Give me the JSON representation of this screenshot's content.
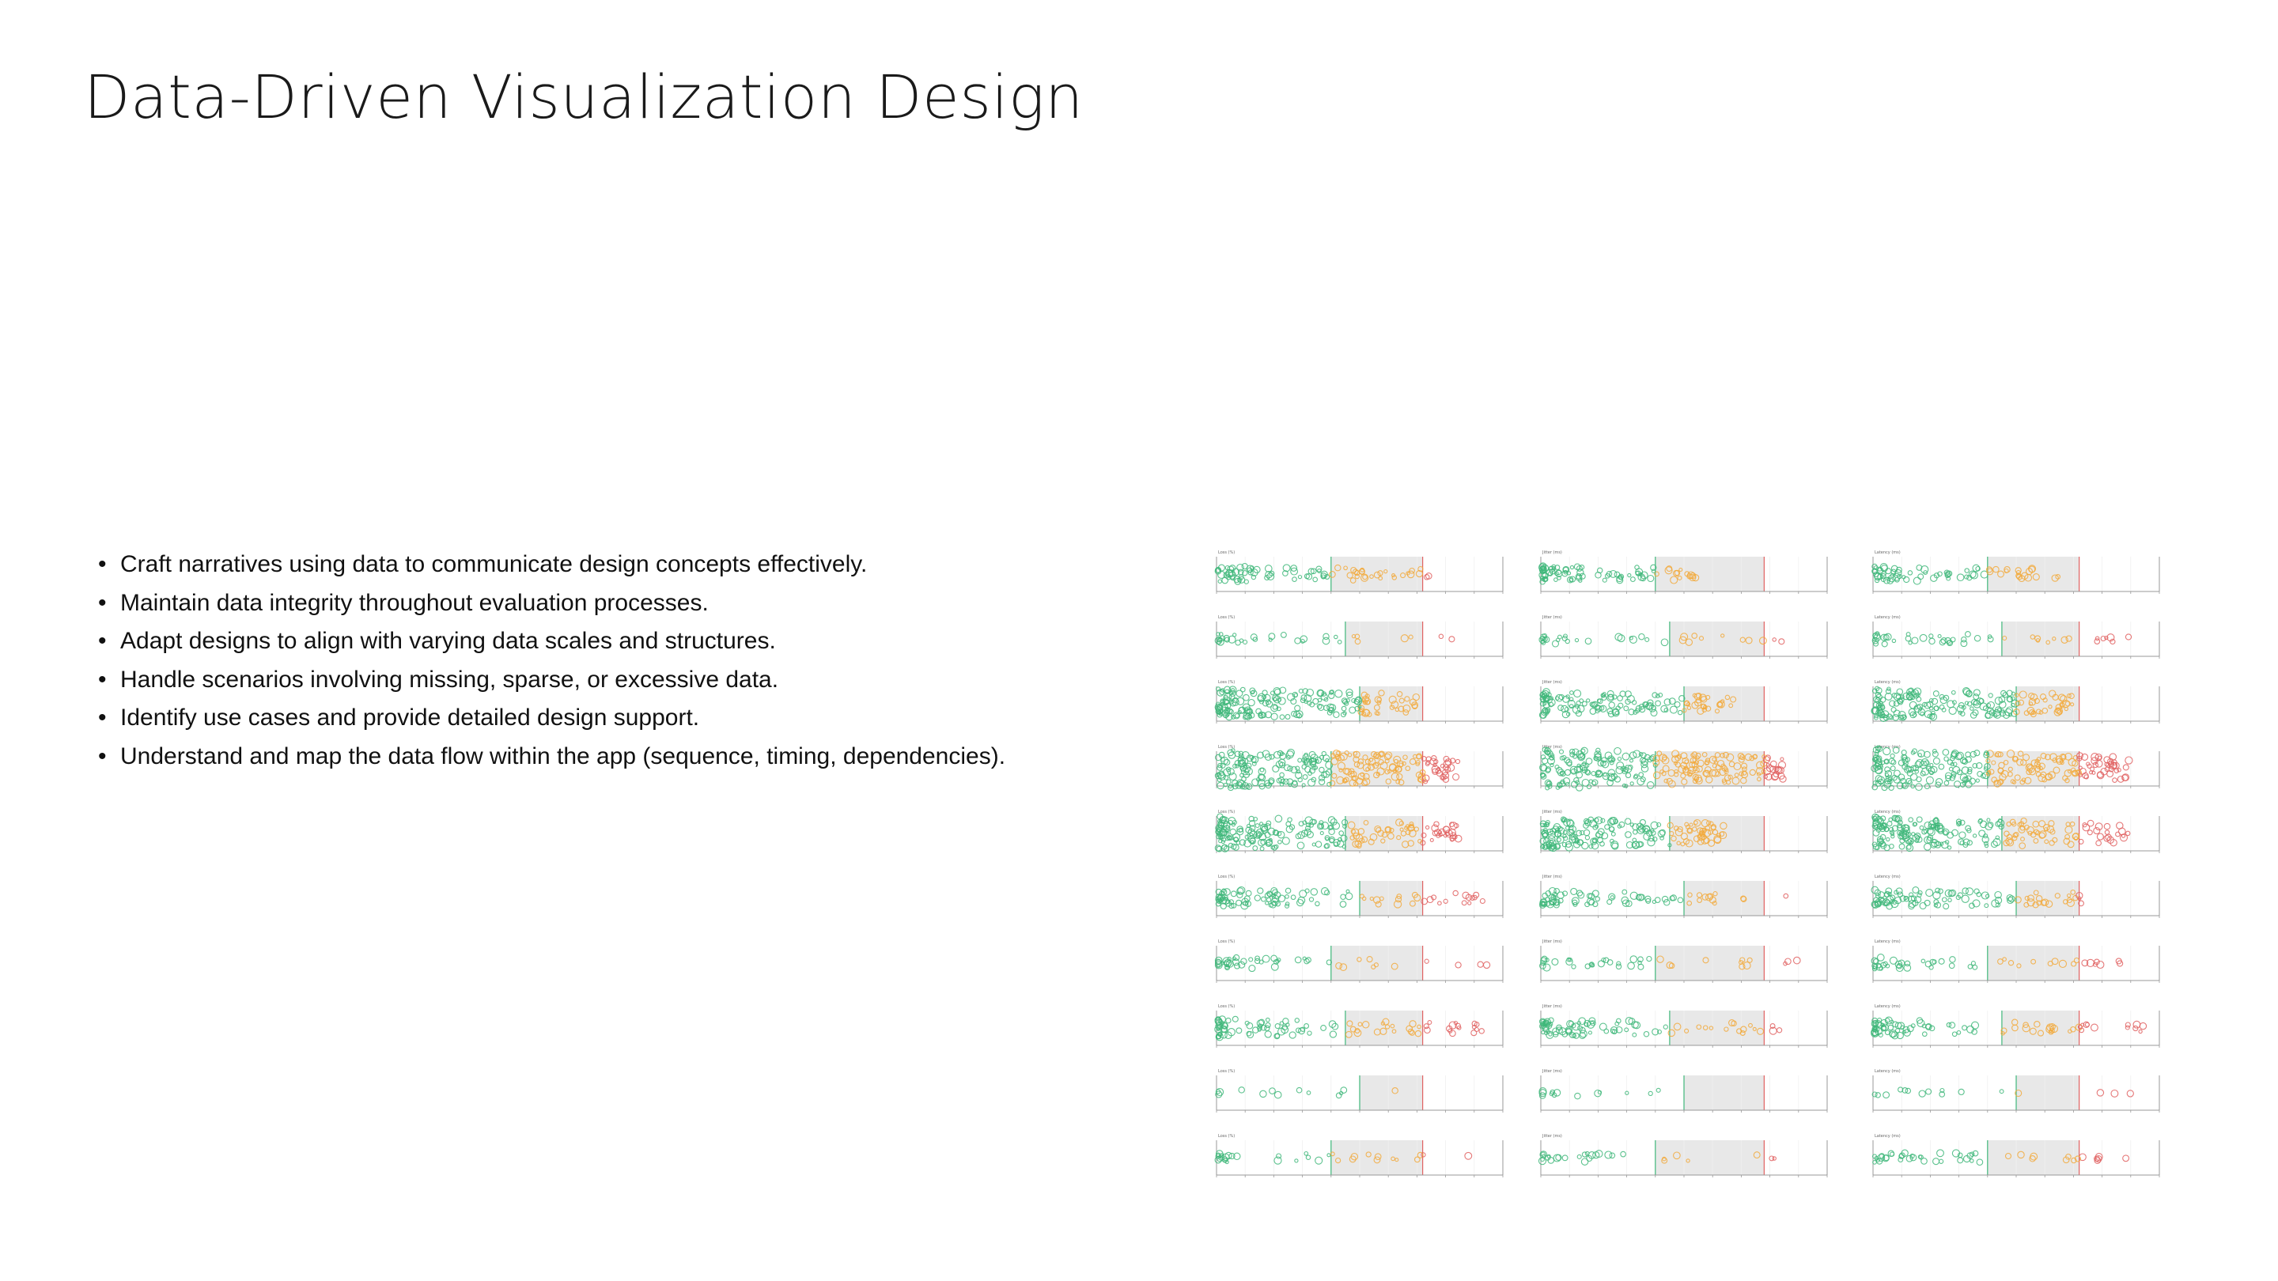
{
  "slide": {
    "title": "Data-Driven Visualization Design"
  },
  "bullets": [
    "Craft narratives using data to communicate design concepts effectively.",
    "Maintain data integrity throughout evaluation processes.",
    "Adapt designs to align with varying data scales and structures.",
    "Handle scenarios involving missing, sparse, or excessive data.",
    "Identify use cases and provide detailed design support.",
    "Understand and map the data flow within the app (sequence, timing, dependencies)."
  ],
  "bullet_glyph": "•",
  "colors": {
    "good": "#3fb77a",
    "warn": "#f2a93b",
    "bad": "#e06060",
    "band": "#e8e8e8",
    "axis": "#999999"
  },
  "thumbnail_grid": {
    "columns": [
      {
        "metric": "Loss (%)"
      },
      {
        "metric": "Jitter (ms)"
      },
      {
        "metric": "Latency (ms)"
      }
    ],
    "rows": [
      {
        "density": [
          0.3,
          0.3,
          0.25
        ],
        "spread": [
          0.75,
          0.55,
          0.65
        ]
      },
      {
        "density": [
          0.1,
          0.1,
          0.15
        ],
        "spread": [
          0.95,
          0.9,
          0.95
        ]
      },
      {
        "density": [
          0.7,
          0.5,
          0.7
        ],
        "spread": [
          0.7,
          0.7,
          0.7
        ]
      },
      {
        "density": [
          1.0,
          1.0,
          1.0
        ],
        "spread": [
          0.85,
          0.85,
          0.9
        ]
      },
      {
        "density": [
          0.8,
          0.7,
          0.8
        ],
        "spread": [
          0.85,
          0.65,
          0.9
        ]
      },
      {
        "density": [
          0.35,
          0.25,
          0.35
        ],
        "spread": [
          0.95,
          0.9,
          0.75
        ]
      },
      {
        "density": [
          0.15,
          0.12,
          0.15
        ],
        "spread": [
          0.95,
          0.9,
          0.9
        ]
      },
      {
        "density": [
          0.35,
          0.3,
          0.3
        ],
        "spread": [
          0.95,
          0.85,
          0.95
        ]
      },
      {
        "density": [
          0.02,
          0.02,
          0.03
        ],
        "spread": [
          0.7,
          0.5,
          0.95
        ]
      },
      {
        "density": [
          0.1,
          0.08,
          0.15
        ],
        "spread": [
          0.95,
          0.85,
          0.95
        ]
      }
    ]
  }
}
